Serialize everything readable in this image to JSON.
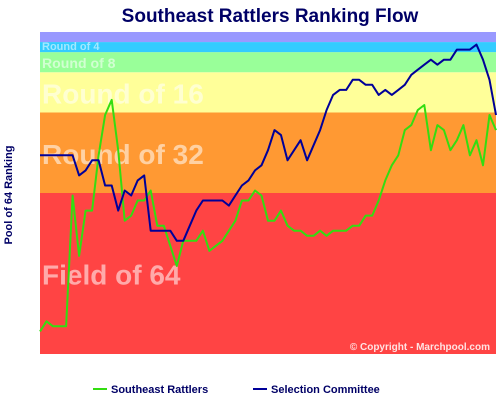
{
  "chart_data": {
    "type": "line",
    "title": "Southeast Rattlers Ranking Flow",
    "ylabel": "Pool of 64 Ranking",
    "xlabel": "",
    "ylim": [
      64,
      1
    ],
    "grid": false,
    "legend_position": "bottom",
    "bands": [
      {
        "label": "Field of 64",
        "from": 64,
        "to": 33,
        "color": "#ff4444"
      },
      {
        "label": "Round of 32",
        "from": 32,
        "to": 17,
        "color": "#ff9933"
      },
      {
        "label": "Round of 16",
        "from": 16,
        "to": 9,
        "color": "#ffff99"
      },
      {
        "label": "Round of 8",
        "from": 8,
        "to": 5,
        "color": "#99ff99"
      },
      {
        "label": "Round of 4",
        "from": 4,
        "to": 3,
        "color": "#33ccff"
      },
      {
        "label": "",
        "from": 2,
        "to": 1,
        "color": "#9999ff"
      }
    ],
    "series": [
      {
        "name": "Southeast Rattlers",
        "color": "#33dd11",
        "values": [
          60,
          58,
          59,
          59,
          59,
          33,
          45,
          36,
          36,
          25,
          17,
          14,
          24,
          38,
          37,
          34,
          34,
          32,
          39,
          39,
          43,
          47,
          42,
          42,
          42,
          40,
          44,
          43,
          42,
          40,
          38,
          34,
          34,
          32,
          33,
          38,
          38,
          36,
          39,
          40,
          40,
          41,
          41,
          40,
          41,
          40,
          40,
          40,
          39,
          39,
          37,
          37,
          34,
          30,
          27,
          25,
          20,
          19,
          16,
          15,
          24,
          19,
          20,
          24,
          22,
          19,
          25,
          22,
          27,
          17,
          20
        ]
      },
      {
        "name": "Selection Committee",
        "color": "#000099",
        "values": [
          25,
          25,
          25,
          25,
          25,
          25,
          29,
          28,
          26,
          26,
          31,
          31,
          36,
          32,
          33,
          30,
          29,
          40,
          40,
          40,
          40,
          42,
          42,
          39,
          36,
          34,
          34,
          34,
          34,
          35,
          33,
          31,
          30,
          28,
          27,
          24,
          20,
          21,
          26,
          24,
          22,
          26,
          23,
          20,
          16,
          13,
          12,
          12,
          10,
          10,
          11,
          11,
          13,
          12,
          13,
          12,
          11,
          9,
          8,
          7,
          6,
          7,
          6,
          6,
          4,
          4,
          4,
          3,
          6,
          10,
          17
        ]
      }
    ]
  },
  "copyright": "© Copyright - Marchpool.com"
}
